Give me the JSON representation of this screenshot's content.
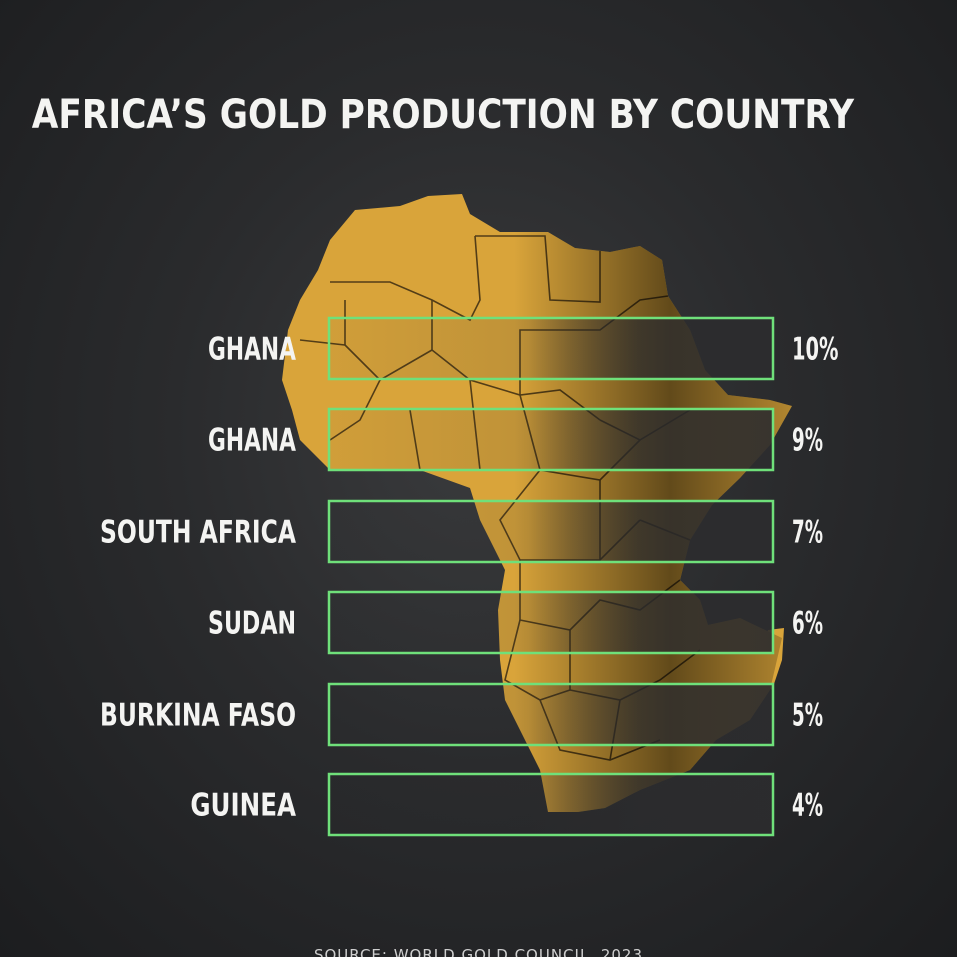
{
  "title": "AFRICA’S GOLD PRODUCTION BY COUNTRY",
  "source": "SOURCE: WORLD GOLD COUNCIL, 2023",
  "colors": {
    "background": "#2a2b2d",
    "map_gold": "#d9a43a",
    "bar_outline": "#6fe07a",
    "bar_fill": "#2c2c2e",
    "text": "#f4f4f2"
  },
  "chart_data": {
    "type": "bar",
    "orientation": "horizontal",
    "categories": [
      "GHANA",
      "GHANA",
      "SOUTH AFRICA",
      "SUDAN",
      "BURKINA FASO",
      "GUINEA"
    ],
    "values": [
      10,
      9,
      7,
      6,
      5,
      4
    ],
    "value_labels": [
      "10%",
      "9%",
      "7%",
      "6%",
      "5%",
      "4%"
    ],
    "unit": "%",
    "grid": false,
    "legend": "none",
    "background_image": "africa-map-icon"
  }
}
